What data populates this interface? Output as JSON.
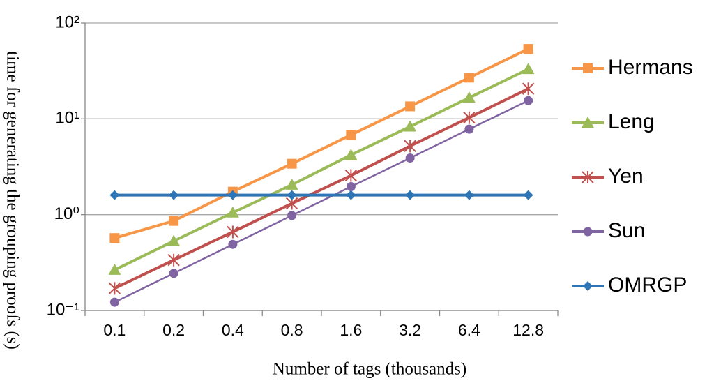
{
  "chart_data": {
    "type": "line",
    "y_label": "time for generating the grouping proofs (s)",
    "x_label": "Number of tags (thousands)",
    "categories": [
      "0.1",
      "0.2",
      "0.4",
      "0.8",
      "1.6",
      "3.2",
      "6.4",
      "12.8"
    ],
    "ylog": true,
    "ylim": [
      0.1,
      100
    ],
    "yticks": [
      {
        "value": 0.1,
        "label": "10⁻¹"
      },
      {
        "value": 1,
        "label": "10⁰"
      },
      {
        "value": 10,
        "label": "10¹"
      },
      {
        "value": 100,
        "label": "10²"
      }
    ],
    "grid": true,
    "legend": "right",
    "series": [
      {
        "name": "Hermans",
        "color": "#f79646",
        "marker": "square",
        "values": [
          0.57,
          0.86,
          1.74,
          3.4,
          6.8,
          13.5,
          26.9,
          53.7
        ]
      },
      {
        "name": "Leng",
        "color": "#9bbb59",
        "marker": "triangle",
        "values": [
          0.265,
          0.53,
          1.05,
          2.05,
          4.2,
          8.3,
          16.6,
          33
        ]
      },
      {
        "name": "Yen",
        "color": "#c0504d",
        "marker": "star",
        "values": [
          0.17,
          0.336,
          0.66,
          1.31,
          2.56,
          5.2,
          10.3,
          20.6
        ]
      },
      {
        "name": "Sun",
        "color": "#8064a2",
        "marker": "circle",
        "values": [
          0.122,
          0.244,
          0.49,
          0.98,
          1.96,
          3.9,
          7.8,
          15.5
        ]
      },
      {
        "name": "OMRGP",
        "color": "#2e75b6",
        "marker": "diamond",
        "values": [
          1.6,
          1.6,
          1.6,
          1.6,
          1.6,
          1.6,
          1.6,
          1.6
        ]
      }
    ]
  }
}
